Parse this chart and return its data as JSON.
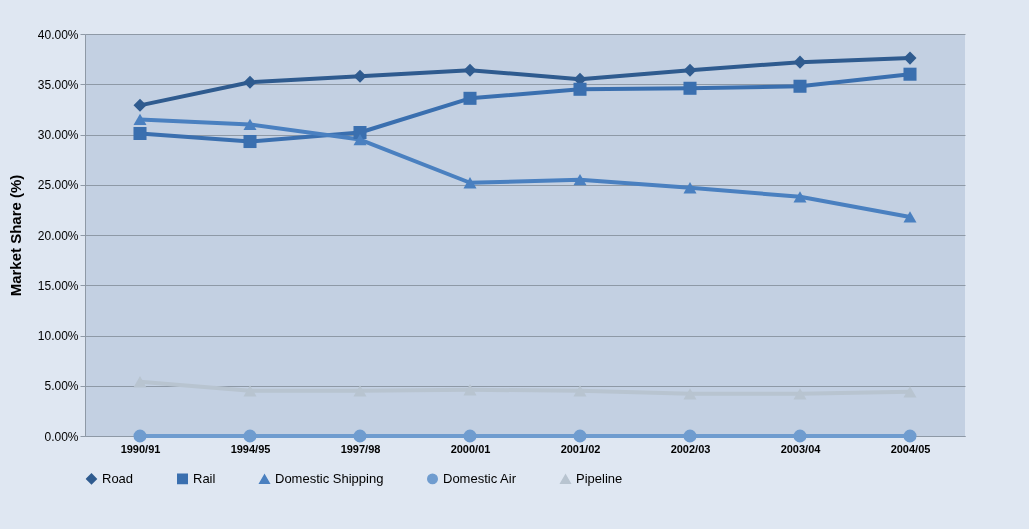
{
  "chart_data": {
    "type": "line",
    "ylabel": "Market Share (%)",
    "categories": [
      "1990/91",
      "1994/95",
      "1997/98",
      "2000/01",
      "2001/02",
      "2002/03",
      "2003/04",
      "2004/05"
    ],
    "series": [
      {
        "name": "Road",
        "color": "#2f5b8f",
        "marker": "diamond",
        "values": [
          32.9,
          35.2,
          35.8,
          36.4,
          35.5,
          36.4,
          37.2,
          37.6
        ]
      },
      {
        "name": "Rail",
        "color": "#3a6faf",
        "marker": "square",
        "values": [
          30.1,
          29.3,
          30.2,
          33.6,
          34.5,
          34.6,
          34.8,
          36.0
        ]
      },
      {
        "name": "Domestic Shipping",
        "color": "#4a80c0",
        "marker": "triangle",
        "values": [
          31.5,
          31.0,
          29.5,
          25.2,
          25.5,
          24.7,
          23.8,
          21.8
        ]
      },
      {
        "name": "Domestic Air",
        "color": "#6f9ccf",
        "marker": "circle",
        "values": [
          0,
          0,
          0,
          0,
          0,
          0,
          0,
          0
        ]
      },
      {
        "name": "Pipeline",
        "color": "#b8c4d0",
        "marker": "triangle",
        "values": [
          5.4,
          4.5,
          4.5,
          4.6,
          4.5,
          4.2,
          4.2,
          4.4
        ]
      }
    ],
    "ylim": [
      0,
      40
    ],
    "yticks": [
      {
        "value": 0,
        "label": "0.00%"
      },
      {
        "value": 5,
        "label": "5.00%"
      },
      {
        "value": 10,
        "label": "10.00%"
      },
      {
        "value": 15,
        "label": "15.00%"
      },
      {
        "value": 20,
        "label": "20.00%"
      },
      {
        "value": 25,
        "label": "25.00%"
      },
      {
        "value": 30,
        "label": "30.00%"
      },
      {
        "value": 35,
        "label": "35.00%"
      },
      {
        "value": 40,
        "label": "40.00%"
      }
    ],
    "grid": "y",
    "legend": "bottom",
    "line_style": "solid"
  }
}
